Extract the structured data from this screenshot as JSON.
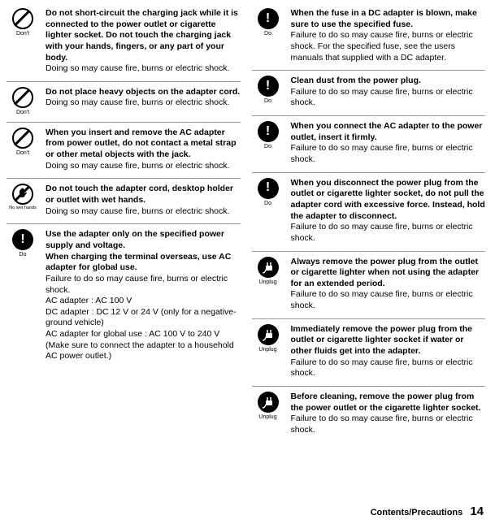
{
  "labels": {
    "dont": "Don't",
    "nowet": "No wet hands",
    "do": "Do",
    "unplug": "Unplug"
  },
  "left": [
    {
      "type": "dont",
      "bold": "Do not short-circuit the charging jack while it is connected to the power outlet or cigarette lighter socket. Do not touch the charging jack with your hands, fingers, or any part of your body.",
      "text": "Doing so may cause fire, burns or electric shock."
    },
    {
      "type": "dont",
      "bold": "Do not place heavy objects on the adapter cord.",
      "text": "Doing so may cause fire, burns or electric shock."
    },
    {
      "type": "dont",
      "bold": "When you insert and remove the AC adapter from power outlet, do not contact a metal strap or other metal objects with the jack.",
      "text": "Doing so may cause fire, burns or electric shock."
    },
    {
      "type": "nowet",
      "bold": "Do not touch the adapter cord, desktop holder or outlet with wet hands.",
      "text": "Doing so may cause fire, burns or electric shock."
    },
    {
      "type": "do",
      "bold": "Use the adapter only on the specified power supply and voltage.\nWhen charging the terminal overseas, use AC adapter for global use.",
      "text": "Failure to do so may cause fire, burns or electric shock.\nAC adapter : AC 100 V\nDC adapter : DC 12 V  or 24 V (only for a negative-ground vehicle)\nAC adapter for global use : AC 100 V to 240 V (Make sure to connect the adapter to a household AC power outlet.)"
    }
  ],
  "right": [
    {
      "type": "do",
      "bold": "When the fuse in a DC adapter is blown, make sure to use the specified fuse.",
      "text": "Failure to do so may cause fire, burns or electric shock. For the specified fuse, see the users manuals that supplied with a DC adapter."
    },
    {
      "type": "do",
      "bold": "Clean dust from the power plug.",
      "text": "Failure to do so may cause fire, burns or electric shock."
    },
    {
      "type": "do",
      "bold": "When you connect the AC adapter to the power outlet, insert it firmly.",
      "text": "Failure to do so may cause fire, burns or electric shock."
    },
    {
      "type": "do",
      "bold": "When you disconnect the power plug from the outlet or cigarette lighter socket, do not pull the adapter cord with excessive force. Instead, hold the adapter to disconnect.",
      "text": "Failure to do so may cause fire, burns or electric shock."
    },
    {
      "type": "unplug",
      "bold": "Always remove the power plug from the outlet or cigarette lighter when not using the adapter for an extended period.",
      "text": "Failure to do so may cause fire, burns or electric shock."
    },
    {
      "type": "unplug",
      "bold": "Immediately remove the power plug from the outlet or cigarette lighter socket if water or other fluids get into the adapter.",
      "text": "Failure to do so may cause fire, burns or electric shock."
    },
    {
      "type": "unplug",
      "bold": "Before cleaning, remove the power plug from the power outlet or the cigarette lighter socket.",
      "text": "Failure to do so may cause fire, burns or electric shock."
    }
  ],
  "footer": {
    "section": "Contents/Precautions",
    "page": "14"
  }
}
